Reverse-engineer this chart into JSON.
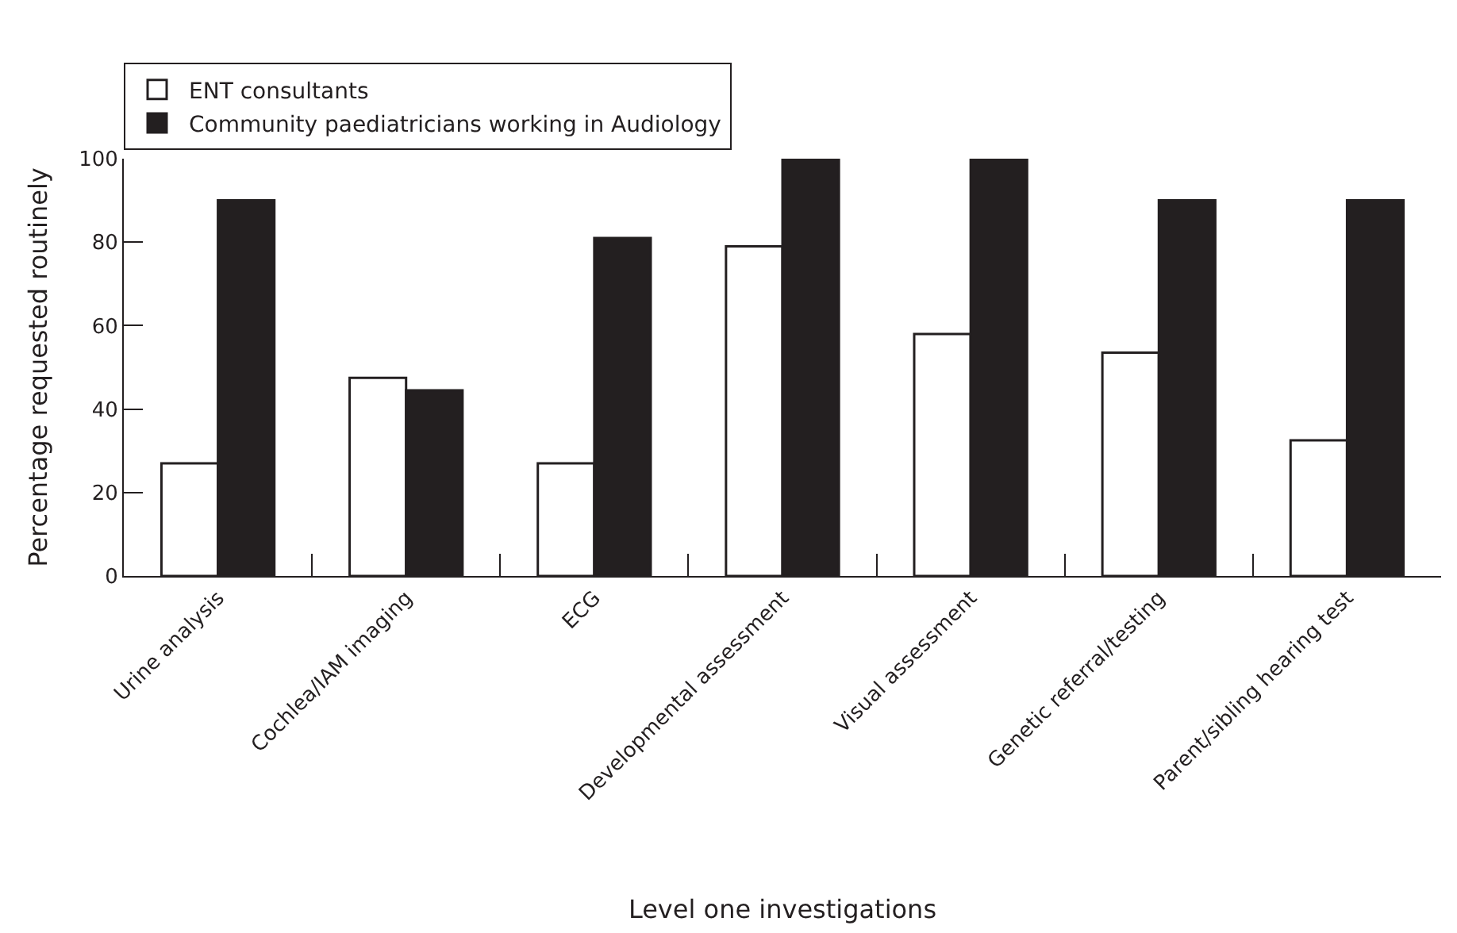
{
  "chart_data": {
    "type": "bar",
    "xlabel": "Level one investigations",
    "ylabel": "Percentage requested routinely",
    "categories": [
      "Urine analysis",
      "Cochlea/IAM imaging",
      "ECG",
      "Developmental assessment",
      "Visual assessment",
      "Genetic referral/testing",
      "Parent/sibling hearing test"
    ],
    "series": [
      {
        "name": "ENT consultants",
        "color": "#ffffff",
        "values": [
          27,
          47.5,
          27,
          79,
          58,
          53.5,
          32.5
        ]
      },
      {
        "name": "Community paediatricians working in Audiology",
        "color": "#231f20",
        "values": [
          90,
          44.5,
          81,
          100,
          100,
          90,
          90
        ]
      }
    ],
    "ylim": [
      0,
      100
    ],
    "yticks": [
      0,
      20,
      40,
      60,
      80,
      100
    ],
    "legend": "top left"
  }
}
